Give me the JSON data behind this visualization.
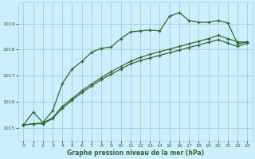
{
  "xlabel": "Graphe pression niveau de la mer (hPa)",
  "bg_color": "#cceeff",
  "grid_color": "#aacccc",
  "line_color": "#2d6a2d",
  "x_ticks": [
    0,
    1,
    2,
    3,
    4,
    5,
    6,
    7,
    8,
    9,
    10,
    11,
    12,
    13,
    14,
    15,
    16,
    17,
    18,
    19,
    20,
    21,
    22,
    23
  ],
  "y_ticks": [
    1015,
    1016,
    1017,
    1018,
    1019
  ],
  "xlim": [
    -0.5,
    23.5
  ],
  "ylim": [
    1014.5,
    1019.8
  ],
  "series1": {
    "x": [
      0,
      1,
      2,
      3,
      4,
      5,
      6,
      7,
      8,
      9,
      10,
      11,
      12,
      13,
      14,
      15,
      16,
      17,
      18,
      19,
      20,
      21,
      22,
      23
    ],
    "y": [
      1015.1,
      1015.6,
      1015.2,
      1015.65,
      1016.7,
      1017.25,
      1017.55,
      1017.9,
      1018.05,
      1018.1,
      1018.42,
      1018.68,
      1018.72,
      1018.75,
      1018.72,
      1019.28,
      1019.42,
      1019.12,
      1019.05,
      1019.05,
      1019.12,
      1019.02,
      1018.22,
      1018.3
    ]
  },
  "series2": {
    "x": [
      0,
      1,
      2,
      3,
      4,
      5,
      6,
      7,
      8,
      9,
      10,
      11,
      12,
      13,
      14,
      15,
      16,
      17,
      18,
      19,
      20,
      21,
      22,
      23
    ],
    "y": [
      1015.1,
      1015.15,
      1015.15,
      1015.35,
      1015.75,
      1016.05,
      1016.35,
      1016.6,
      1016.85,
      1017.05,
      1017.25,
      1017.45,
      1017.58,
      1017.68,
      1017.78,
      1017.88,
      1017.98,
      1018.08,
      1018.18,
      1018.28,
      1018.38,
      1018.25,
      1018.12,
      1018.25
    ]
  },
  "series3": {
    "x": [
      0,
      1,
      2,
      3,
      4,
      5,
      6,
      7,
      8,
      9,
      10,
      11,
      12,
      13,
      14,
      15,
      16,
      17,
      18,
      19,
      20,
      21,
      22,
      23
    ],
    "y": [
      1015.1,
      1015.15,
      1015.18,
      1015.38,
      1015.82,
      1016.12,
      1016.42,
      1016.68,
      1016.92,
      1017.15,
      1017.35,
      1017.55,
      1017.7,
      1017.82,
      1017.92,
      1018.02,
      1018.12,
      1018.22,
      1018.32,
      1018.42,
      1018.55,
      1018.42,
      1018.3,
      1018.28
    ]
  }
}
